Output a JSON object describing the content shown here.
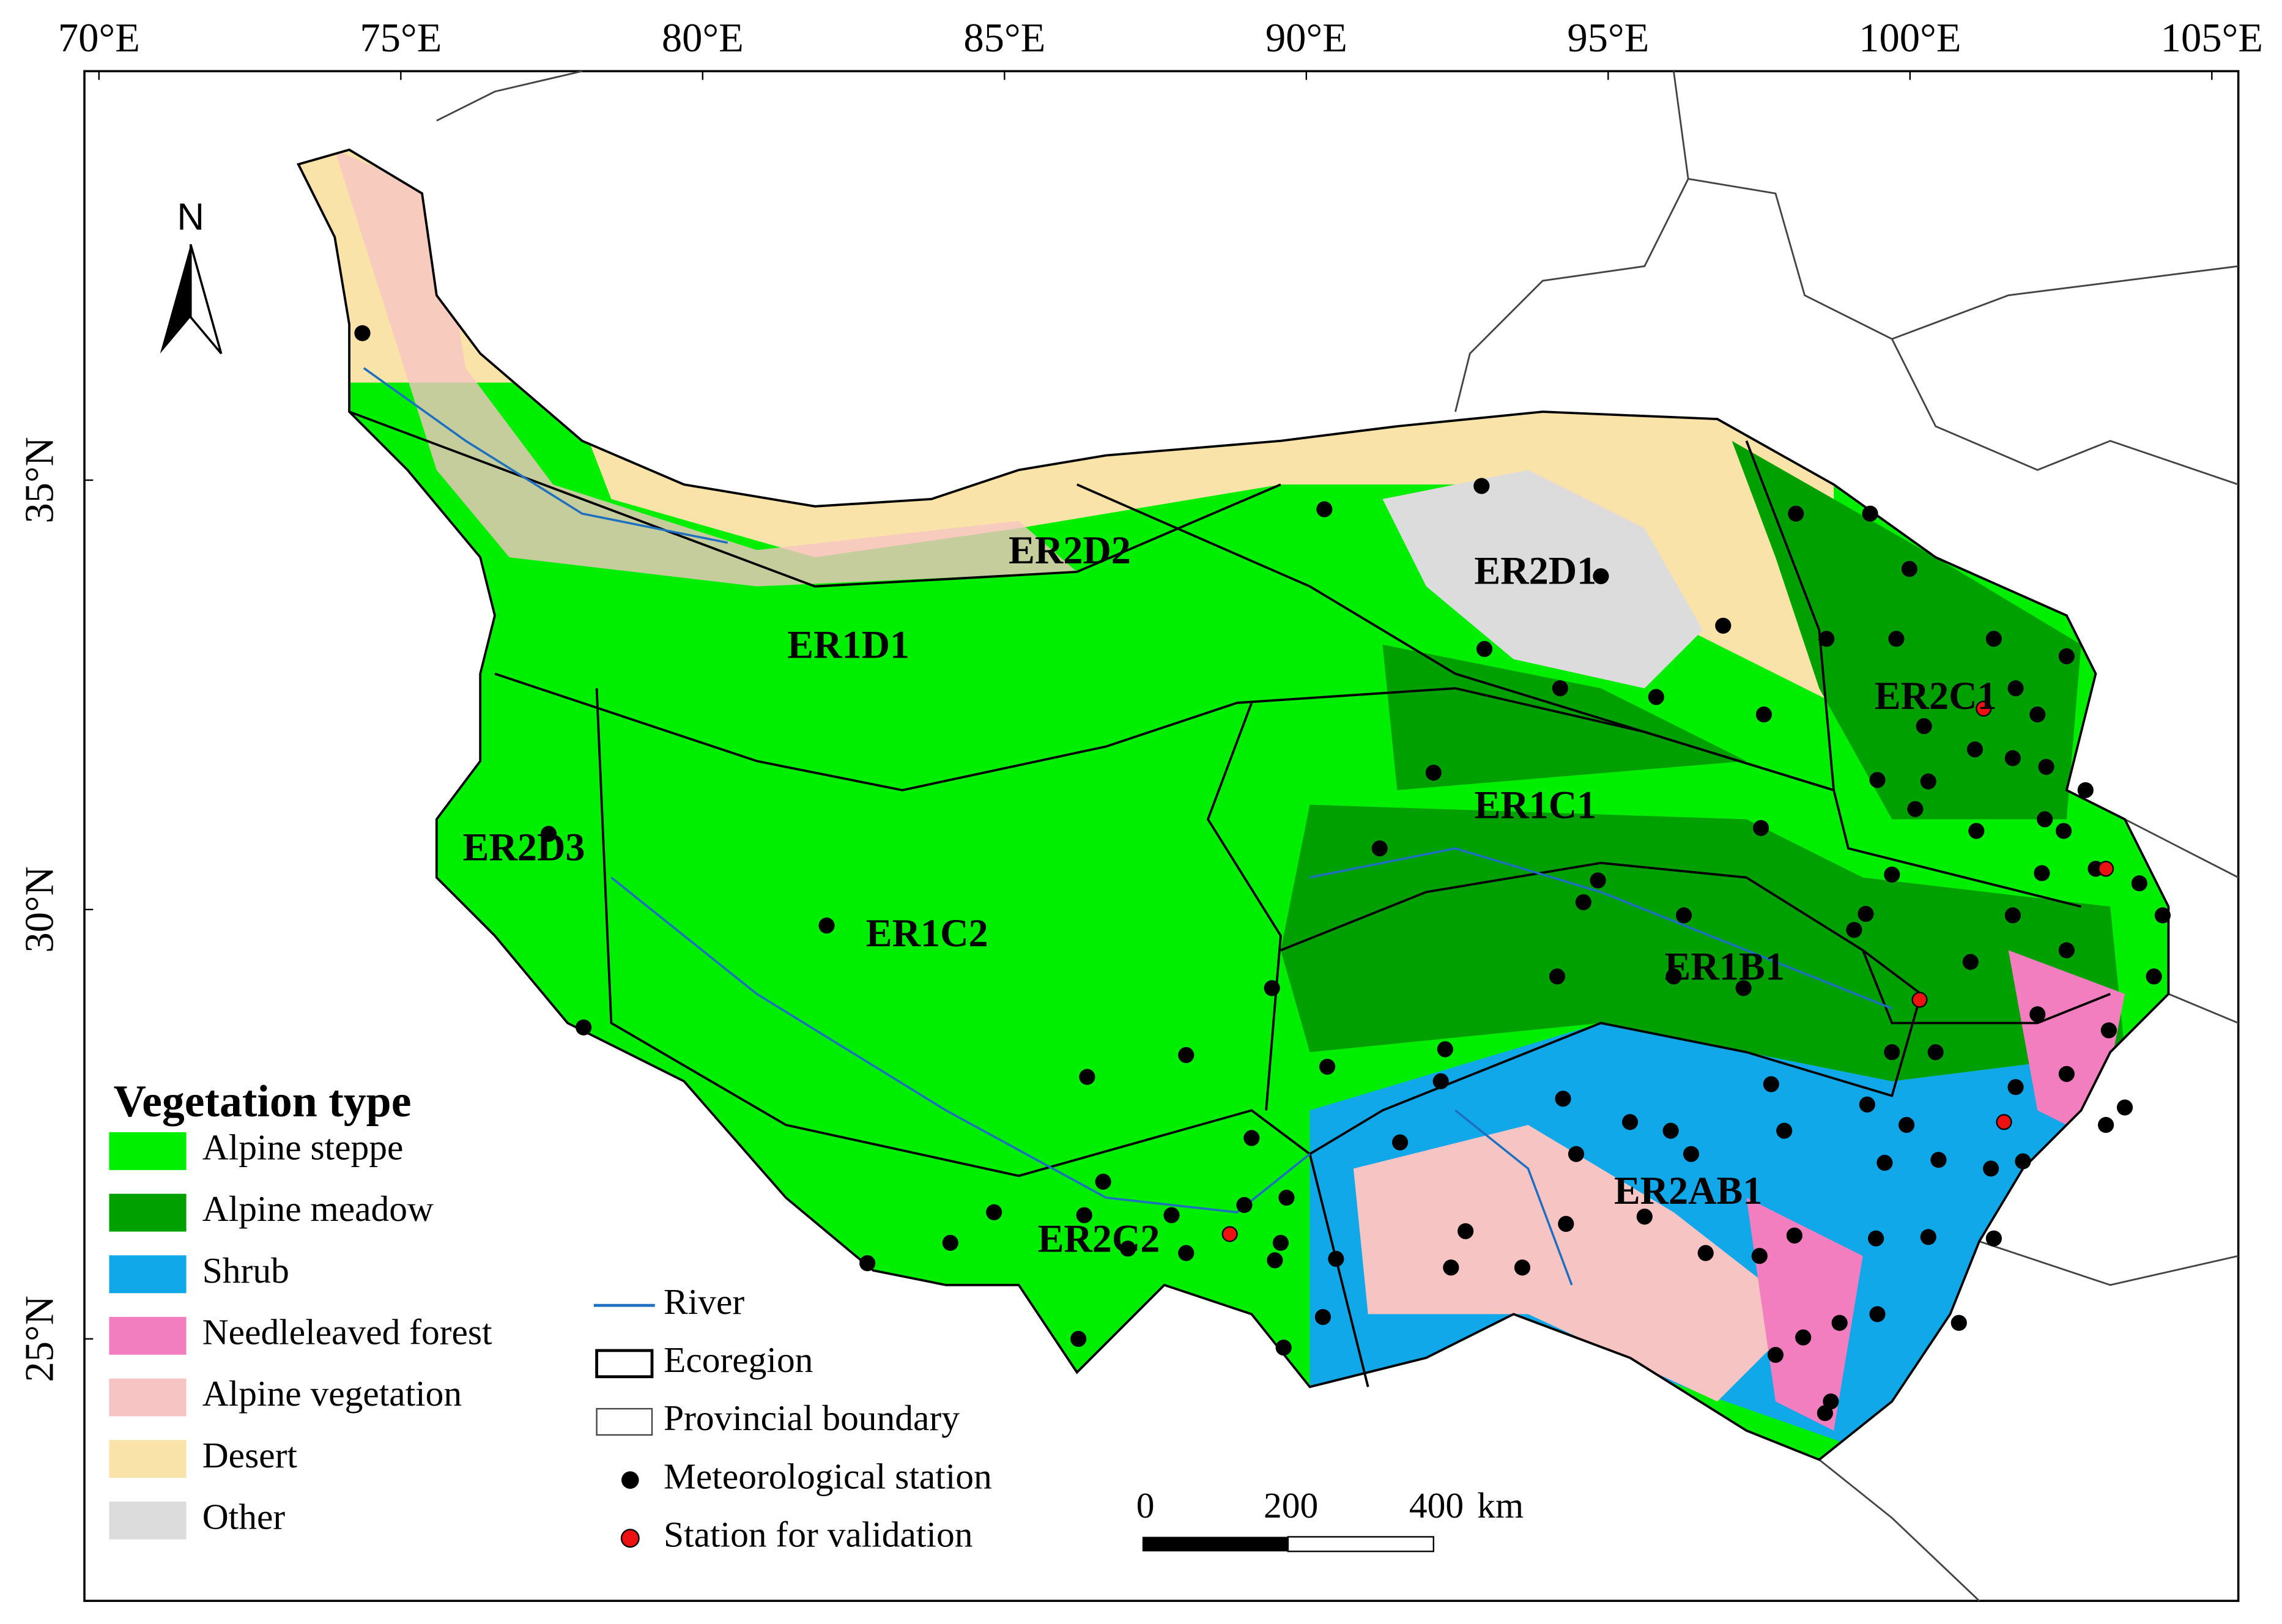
{
  "map": {
    "lon_labels": [
      "70°E",
      "75°E",
      "80°E",
      "85°E",
      "90°E",
      "95°E",
      "100°E",
      "105°E"
    ],
    "lat_labels": [
      "35°N",
      "30°N",
      "25°N"
    ],
    "north": "N",
    "regions": [
      "ER2D2",
      "ER1D1",
      "ER2D1",
      "ER2C1",
      "ER1C1",
      "ER2D3",
      "ER1C2",
      "ER1B1",
      "ER2AB1",
      "ER2C2"
    ],
    "legend": {
      "title": "Vegetation type",
      "items": [
        {
          "label": "Alpine steppe",
          "color": "#00ee00"
        },
        {
          "label": "Alpine meadow",
          "color": "#00a000"
        },
        {
          "label": "Shrub",
          "color": "#10a8e8"
        },
        {
          "label": "Needleleaved forest",
          "color": "#f27ec0"
        },
        {
          "label": "Alpine vegetation",
          "color": "#f7c4c4"
        },
        {
          "label": "Desert",
          "color": "#f9e3a8"
        },
        {
          "label": "Other",
          "color": "#dcdcdc"
        }
      ],
      "symbols": [
        "River",
        "Ecoregion",
        "Provincial boundary",
        "Meteorological station",
        "Station for validation"
      ]
    },
    "scale_bar": {
      "labels": [
        "0",
        "200",
        "400"
      ],
      "unit": "km"
    }
  }
}
